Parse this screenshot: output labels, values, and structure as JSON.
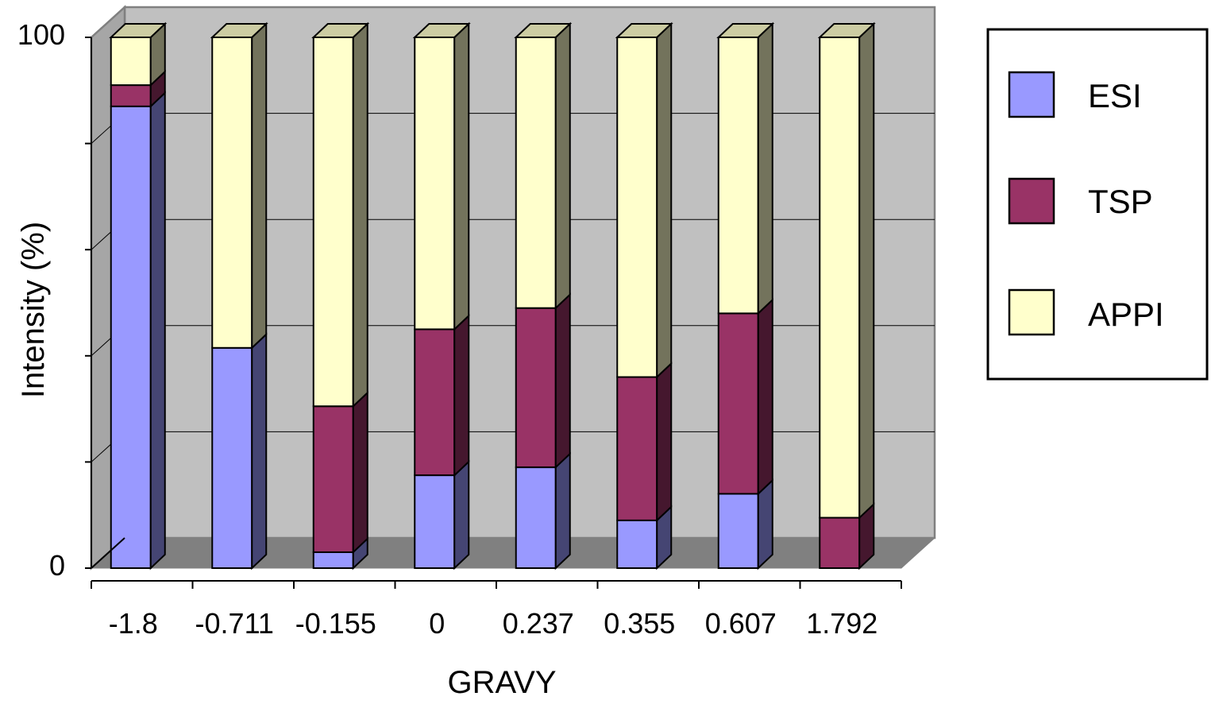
{
  "chart_data": {
    "type": "bar",
    "stacked": true,
    "three_d": true,
    "title": "",
    "xlabel": "GRAVY",
    "ylabel": "Intensity (%)",
    "ylim": [
      0,
      100
    ],
    "y_tick_labels": [
      "0",
      "100"
    ],
    "grid": true,
    "categories": [
      "-1.8",
      "-0.711",
      "-0.155",
      "0",
      "0.237",
      "0.355",
      "0.607",
      "1.792"
    ],
    "series": [
      {
        "name": "ESI",
        "color": "#9999FF",
        "values": [
          87,
          41.5,
          3,
          17.5,
          19,
          9,
          14,
          0
        ]
      },
      {
        "name": "TSP",
        "color": "#993366",
        "values": [
          4,
          0,
          27.5,
          27.5,
          30,
          27,
          34,
          9.5
        ]
      },
      {
        "name": "APPI",
        "color": "#FFFFCC",
        "values": [
          9,
          58.5,
          69.5,
          55,
          51,
          64,
          52,
          90.5
        ]
      }
    ],
    "legend": {
      "position": "right"
    }
  }
}
